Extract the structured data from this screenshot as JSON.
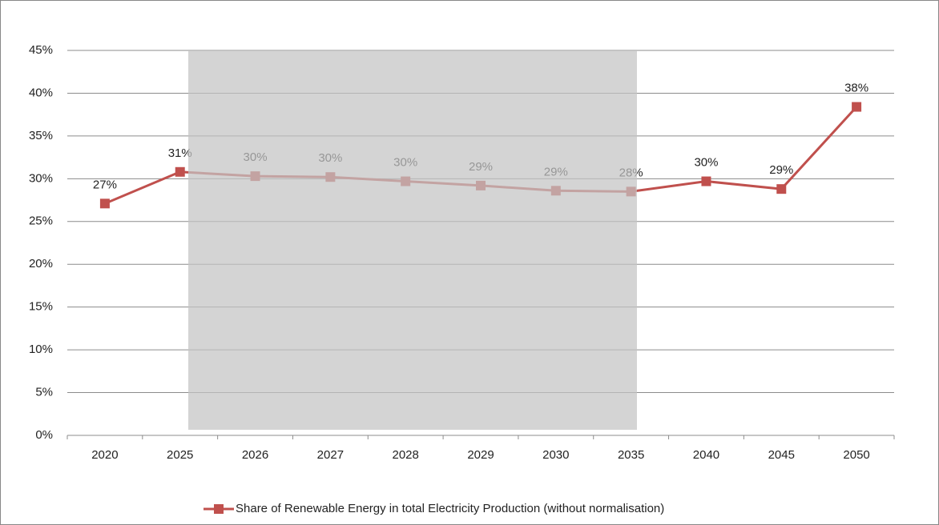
{
  "chart_data": {
    "type": "line",
    "categories": [
      "2020",
      "2025",
      "2026",
      "2027",
      "2028",
      "2029",
      "2030",
      "2035",
      "2040",
      "2045",
      "2050"
    ],
    "series": [
      {
        "name": "Share of Renewable Energy in total Electricity Production (without normalisation)",
        "color": "#c0504d",
        "values": [
          27.1,
          30.8,
          30.3,
          30.2,
          29.7,
          29.2,
          28.6,
          28.5,
          29.7,
          28.8,
          38.4
        ],
        "value_labels": [
          "27%",
          "31%",
          "30%",
          "30%",
          "30%",
          "29%",
          "29%",
          "28%",
          "30%",
          "29%",
          "38%"
        ]
      }
    ],
    "ylim": [
      0,
      45
    ],
    "yticks": [
      {
        "value": 0,
        "label": "0%"
      },
      {
        "value": 5,
        "label": "5%"
      },
      {
        "value": 10,
        "label": "10%"
      },
      {
        "value": 15,
        "label": "15%"
      },
      {
        "value": 20,
        "label": "20%"
      },
      {
        "value": 25,
        "label": "25%"
      },
      {
        "value": 30,
        "label": "30%"
      },
      {
        "value": 35,
        "label": "35%"
      },
      {
        "value": 40,
        "label": "40%"
      },
      {
        "value": 45,
        "label": "45%"
      }
    ],
    "grid": true,
    "legend": "bottom"
  }
}
